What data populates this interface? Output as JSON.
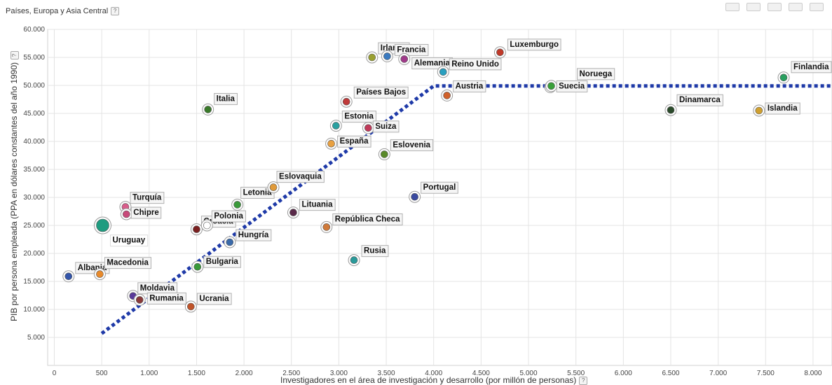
{
  "header": {
    "title": "Países, Europa y Asia Central",
    "help": "?"
  },
  "chart_data": {
    "type": "scatter",
    "xlabel": "Investigadores en el área de investigación y desarrollo (por millón de personas)",
    "ylabel": "PIB por persona empleada (PPA en dólares constantes del año 1990)",
    "xlim": [
      -70,
      8200
    ],
    "ylim": [
      0,
      60000
    ],
    "x_ticks": [
      {
        "v": 0,
        "label": "0"
      },
      {
        "v": 500,
        "label": "500"
      },
      {
        "v": 1000,
        "label": "1.000"
      },
      {
        "v": 1500,
        "label": "1.500"
      },
      {
        "v": 2000,
        "label": "2.000"
      },
      {
        "v": 2500,
        "label": "2.500"
      },
      {
        "v": 3000,
        "label": "3.000"
      },
      {
        "v": 3500,
        "label": "3.500"
      },
      {
        "v": 4000,
        "label": "4.000"
      },
      {
        "v": 4500,
        "label": "4.500"
      },
      {
        "v": 5000,
        "label": "5.000"
      },
      {
        "v": 5500,
        "label": "5.500"
      },
      {
        "v": 6000,
        "label": "6.000"
      },
      {
        "v": 6500,
        "label": "6.500"
      },
      {
        "v": 7000,
        "label": "7.000"
      },
      {
        "v": 7500,
        "label": "7.500"
      },
      {
        "v": 8000,
        "label": "8.000"
      }
    ],
    "y_ticks": [
      {
        "v": 5000,
        "label": "5.000"
      },
      {
        "v": 10000,
        "label": "10.000"
      },
      {
        "v": 15000,
        "label": "15.000"
      },
      {
        "v": 20000,
        "label": "20.000"
      },
      {
        "v": 25000,
        "label": "25.000"
      },
      {
        "v": 30000,
        "label": "30.000"
      },
      {
        "v": 35000,
        "label": "35.000"
      },
      {
        "v": 40000,
        "label": "40.000"
      },
      {
        "v": 45000,
        "label": "45.000"
      },
      {
        "v": 50000,
        "label": "50.000"
      },
      {
        "v": 55000,
        "label": "55.000"
      },
      {
        "v": 60000,
        "label": "60.000"
      }
    ],
    "points": [
      {
        "label": "Albania",
        "x": 150,
        "y": 15900,
        "color": "#3355aa"
      },
      {
        "label": "Macedonia",
        "x": 480,
        "y": 16300,
        "color": "#e88a2c"
      },
      {
        "label": "Uruguay",
        "x": 510,
        "y": 25000,
        "color": "#1f9c80",
        "highlight": true
      },
      {
        "label": "Turquía",
        "x": 750,
        "y": 28300,
        "color": "#d85c8a"
      },
      {
        "label": "Chipre",
        "x": 760,
        "y": 27000,
        "color": "#c84a7a"
      },
      {
        "label": "Moldavia",
        "x": 830,
        "y": 12400,
        "color": "#5a3a9a"
      },
      {
        "label": "Rumania",
        "x": 900,
        "y": 11700,
        "color": "#8a3a3a"
      },
      {
        "label": "Italia",
        "x": 1620,
        "y": 45700,
        "color": "#3a7a2a"
      },
      {
        "label": "Ucrania",
        "x": 1440,
        "y": 10500,
        "color": "#c0542a"
      },
      {
        "label": "Croacia",
        "x": 1500,
        "y": 24300,
        "color": "#7a2020"
      },
      {
        "label": "Bulgaria",
        "x": 1510,
        "y": 17600,
        "color": "#3a9a3a"
      },
      {
        "label": "Polonia",
        "x": 1610,
        "y": 25000,
        "color": "#ffffff"
      },
      {
        "label": "Hungría",
        "x": 1850,
        "y": 22000,
        "color": "#3a6aaa"
      },
      {
        "label": "Letonia",
        "x": 1930,
        "y": 28700,
        "color": "#3a9a3a"
      },
      {
        "label": "Eslovaquia",
        "x": 2310,
        "y": 31800,
        "color": "#e09a3a"
      },
      {
        "label": "Lituania",
        "x": 2520,
        "y": 27300,
        "color": "#5a2a4a"
      },
      {
        "label": "República Checa",
        "x": 2870,
        "y": 24700,
        "color": "#d07a3a"
      },
      {
        "label": "España",
        "x": 2920,
        "y": 39600,
        "color": "#e8a040"
      },
      {
        "label": "Estonia",
        "x": 2970,
        "y": 42800,
        "color": "#2aa0a0"
      },
      {
        "label": "Países Bajos",
        "x": 3080,
        "y": 47100,
        "color": "#c03a3a"
      },
      {
        "label": "Rusia",
        "x": 3160,
        "y": 18800,
        "color": "#2a9a9a"
      },
      {
        "label": "Suiza",
        "x": 3310,
        "y": 42400,
        "color": "#c03a5a"
      },
      {
        "label": "Irlanda",
        "x": 3350,
        "y": 55000,
        "color": "#9aa030"
      },
      {
        "label": "Eslovenia",
        "x": 3480,
        "y": 37700,
        "color": "#5a8a2a"
      },
      {
        "label": "Francia",
        "x": 3510,
        "y": 55200,
        "color": "#3a7ac0"
      },
      {
        "label": "Alemania",
        "x": 3690,
        "y": 54700,
        "color": "#a03a8a"
      },
      {
        "label": "Portugal",
        "x": 3800,
        "y": 30100,
        "color": "#3a4aa0"
      },
      {
        "label": "Reino Unido",
        "x": 4100,
        "y": 52400,
        "color": "#2aa0c0"
      },
      {
        "label": "Austria",
        "x": 4140,
        "y": 48200,
        "color": "#d0602a"
      },
      {
        "label": "Luxemburgo",
        "x": 4700,
        "y": 55900,
        "color": "#c03a2a"
      },
      {
        "label": "Suecia",
        "x": 5230,
        "y": 49700,
        "color": "#2a9a6a"
      },
      {
        "label": "Noruega",
        "x": 5240,
        "y": 49900,
        "color": "#3aa03a"
      },
      {
        "label": "Dinamarca",
        "x": 6500,
        "y": 45600,
        "color": "#2a4a2a"
      },
      {
        "label": "Islandia",
        "x": 7430,
        "y": 45500,
        "color": "#d0a030"
      },
      {
        "label": "Finlandia",
        "x": 7690,
        "y": 51400,
        "color": "#2aa060"
      }
    ],
    "trendline": [
      {
        "x": 500,
        "y": 5700
      },
      {
        "x": 4000,
        "y": 49900
      },
      {
        "x": 8200,
        "y": 49900
      }
    ]
  }
}
